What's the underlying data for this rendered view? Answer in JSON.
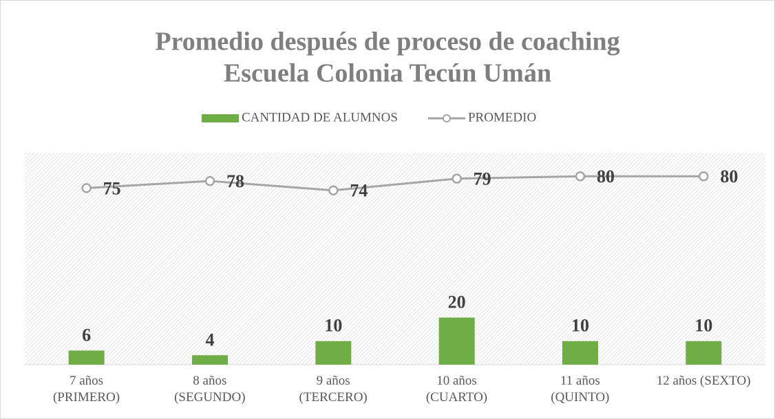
{
  "chart_data": {
    "type": "bar_line",
    "title": "Promedio después de proceso de coaching",
    "subtitle": "Escuela Colonia Tecún Umán",
    "categories": [
      "7 años\n(PRIMERO)",
      "8 años\n(SEGUNDO)",
      "9 años\n(TERCERO)",
      "10 años\n(CUARTO)",
      "11 años\n(QUINTO)",
      "12 años (SEXTO)"
    ],
    "series": [
      {
        "name": "CANTIDAD DE ALUMNOS",
        "type": "bar",
        "color": "#70ad47",
        "values": [
          6,
          4,
          10,
          20,
          10,
          10
        ]
      },
      {
        "name": "PROMEDIO",
        "type": "line",
        "color": "#a5a5a5",
        "values": [
          75,
          78,
          74,
          79,
          80,
          80
        ]
      }
    ],
    "ylim": [
      0,
      90
    ],
    "legend": "top"
  }
}
